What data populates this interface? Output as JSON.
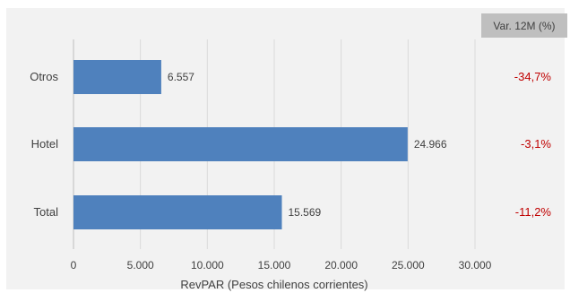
{
  "header": {
    "var_label": "Var. 12M (%)"
  },
  "chart_data": {
    "type": "bar",
    "orientation": "horizontal",
    "categories": [
      "Otros",
      "Hotel",
      "Total"
    ],
    "values": [
      6557,
      24966,
      15569
    ],
    "value_labels": [
      "6.557",
      "24.966",
      "15.569"
    ],
    "var_12m": [
      "-34,7%",
      "-3,1%",
      "-11,2%"
    ],
    "xlabel": "RevPAR  (Pesos chilenos corrientes)",
    "xlim": [
      0,
      30000
    ],
    "xticks": [
      0,
      5000,
      10000,
      15000,
      20000,
      25000,
      30000
    ],
    "xtick_labels": [
      "0",
      "5.000",
      "10.000",
      "15.000",
      "20.000",
      "25.000",
      "30.000"
    ],
    "grid": "vertical",
    "bar_color": "#4f81bd",
    "grid_color": "#d9d9d9",
    "var_color": "#c00000",
    "background": "#f2f2f2"
  }
}
